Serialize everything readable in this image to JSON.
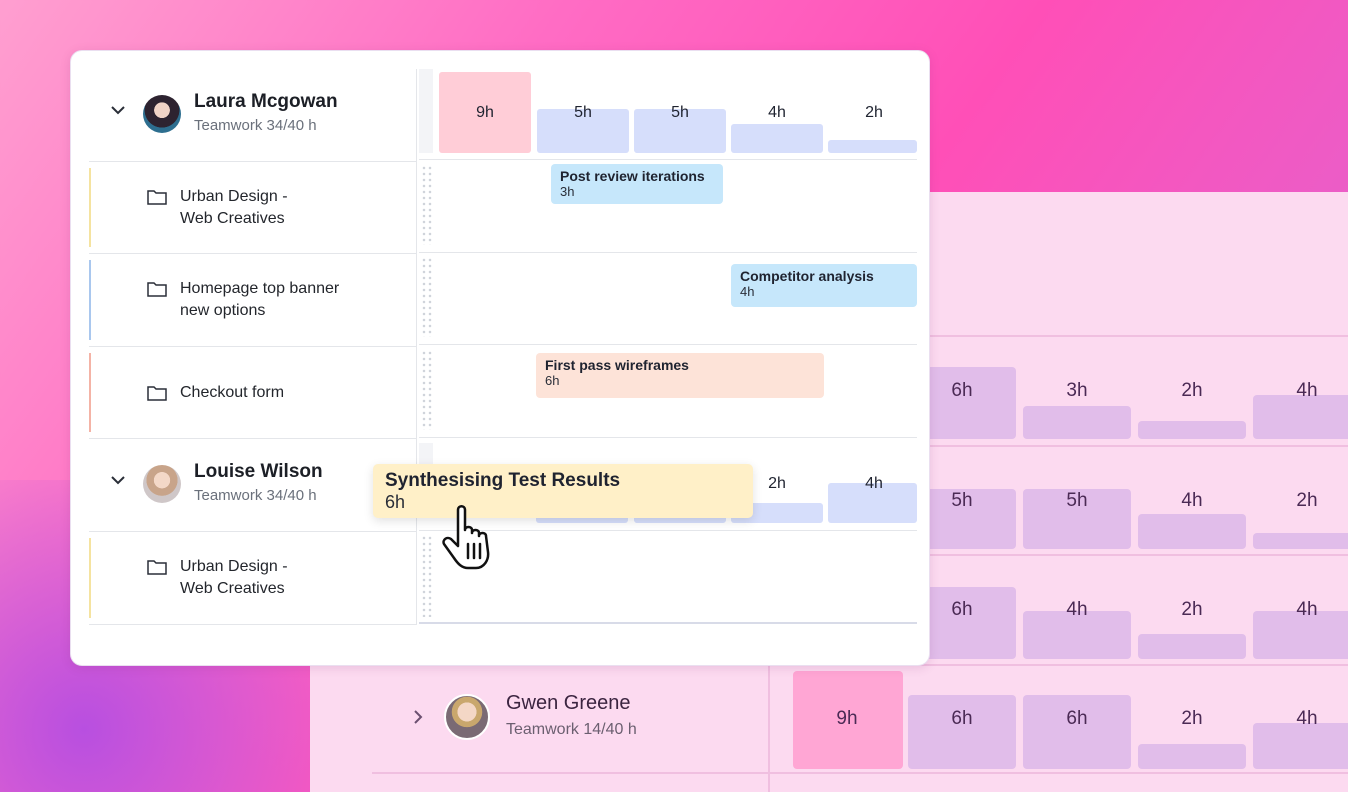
{
  "back_panel": {
    "rows": [
      {
        "bars": [
          {
            "label": "6h",
            "level": 6
          },
          {
            "label": "3h",
            "level": 3
          },
          {
            "label": "2h",
            "level": 2
          },
          {
            "label": "4h",
            "level": 4
          }
        ]
      },
      {
        "bars": [
          {
            "label": "5h",
            "level": 5
          },
          {
            "label": "5h",
            "level": 5
          },
          {
            "label": "4h",
            "level": 4
          },
          {
            "label": "2h",
            "level": 2
          }
        ]
      },
      {
        "bars": [
          {
            "label": "6h",
            "level": 6
          },
          {
            "label": "4h",
            "level": 4
          },
          {
            "label": "2h",
            "level": 2
          },
          {
            "label": "4h",
            "level": 4
          }
        ]
      }
    ],
    "gwen": {
      "name": "Gwen Greene",
      "subtitle": "Teamwork  14/40 h",
      "bars": [
        {
          "label": "9h",
          "level": 9,
          "over": true
        },
        {
          "label": "6h",
          "level": 6
        },
        {
          "label": "6h",
          "level": 6
        },
        {
          "label": "2h",
          "level": 2
        },
        {
          "label": "4h",
          "level": 4
        }
      ]
    }
  },
  "card": {
    "people": [
      {
        "name": "Laura Mcgowan",
        "subtitle": "Teamwork  34/40 h",
        "capacity": [
          {
            "label": "9h",
            "level": 9,
            "over": true
          },
          {
            "label": "5h",
            "level": 5
          },
          {
            "label": "5h",
            "level": 5
          },
          {
            "label": "4h",
            "level": 4
          },
          {
            "label": "2h",
            "level": 2
          }
        ],
        "projects": [
          {
            "name": "Urban Design -\nWeb Creatives",
            "stripe": "#f5e3a0"
          },
          {
            "name": "Homepage top banner\nnew options",
            "stripe": "#a9c7ee"
          },
          {
            "name": "Checkout form",
            "stripe": "#f4b3a6"
          }
        ]
      },
      {
        "name": "Louise Wilson",
        "subtitle": "Teamwork  34/40 h",
        "capacity": [
          {
            "label": "2h",
            "level": 2
          },
          {
            "label": "4h",
            "level": 4
          }
        ],
        "projects": [
          {
            "name": "Urban Design -\nWeb Creatives",
            "stripe": "#f5e3a0"
          }
        ]
      }
    ],
    "tasks": [
      {
        "title": "Post review iterations",
        "hours": "3h",
        "color": "#c6e7fb"
      },
      {
        "title": "Competitor analysis",
        "hours": "4h",
        "color": "#c6e7fb"
      },
      {
        "title": "First pass wireframes",
        "hours": "6h",
        "color": "#fde3d8"
      }
    ],
    "dragging_task": {
      "title": "Synthesising Test Results",
      "hours": "6h",
      "color": "#fff0c8"
    }
  },
  "icons": {
    "expand": "chevron-down-icon",
    "collapsed": "chevron-right-icon",
    "project": "folder-icon",
    "cursor": "grab-hand-cursor-icon"
  }
}
